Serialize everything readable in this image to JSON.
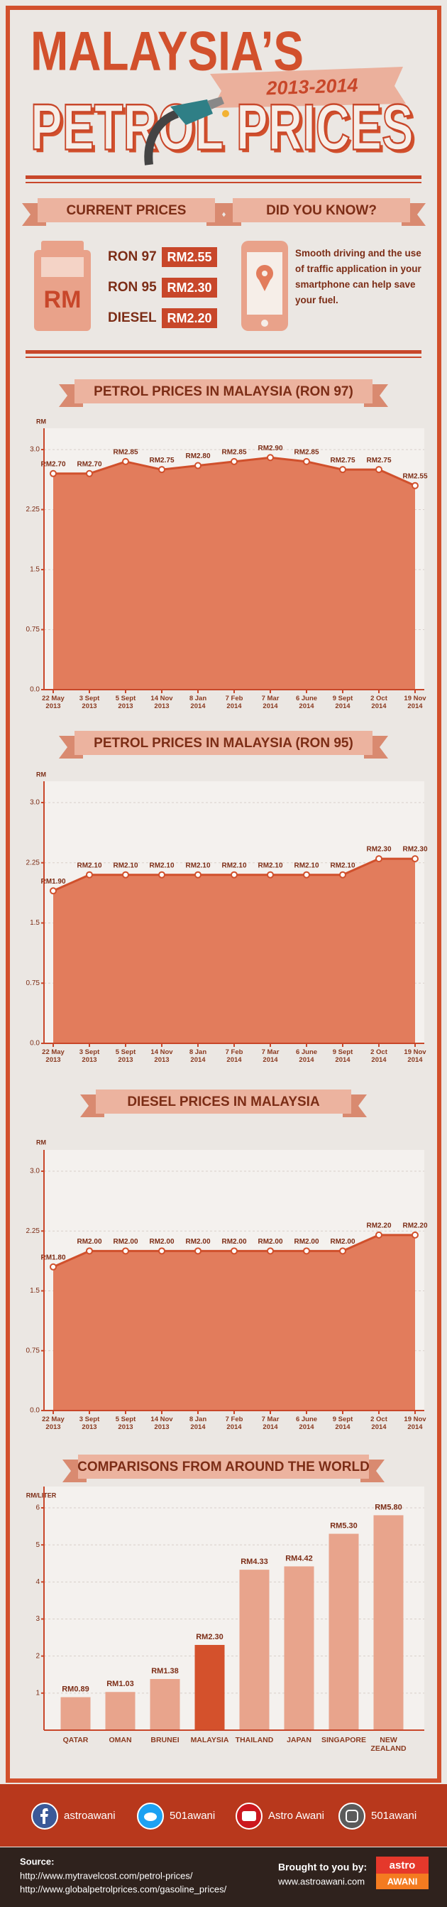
{
  "header": {
    "title": "MALAYSIA’S",
    "subtitle": "PETROL PRICES",
    "years": "2013-2014"
  },
  "current_prices": {
    "title": "CURRENT PRICES",
    "badge": "RM",
    "items": [
      {
        "fuel": "RON 97",
        "price": "RM2.55"
      },
      {
        "fuel": "RON 95",
        "price": "RM2.30"
      },
      {
        "fuel": "DIESEL",
        "price": "RM2.20"
      }
    ]
  },
  "did_you_know": {
    "title": "DID YOU KNOW?",
    "text": "Smooth driving and the use of traffic application in your smartphone can help save your fuel."
  },
  "chart_data": [
    {
      "type": "area",
      "title": "PETROL PRICES IN MALAYSIA (RON 97)",
      "y_label": "RM",
      "categories": [
        "22 May 2013",
        "3 Sept 2013",
        "5 Sept 2013",
        "14 Nov 2013",
        "8 Jan 2014",
        "7 Feb 2014",
        "7 Mar 2014",
        "6 June 2014",
        "9 Sept 2014",
        "2 Oct 2014",
        "19 Nov 2014"
      ],
      "values": [
        2.7,
        2.7,
        2.85,
        2.75,
        2.8,
        2.85,
        2.9,
        2.85,
        2.75,
        2.75,
        2.55
      ],
      "value_labels": [
        "RM2.70",
        "RM2.70",
        "RM2.85",
        "RM2.75",
        "RM2.80",
        "RM2.85",
        "RM2.90",
        "RM2.85",
        "RM2.75",
        "RM2.75",
        "RM2.55"
      ],
      "color": "#e27c5c",
      "line_color": "#d0502c",
      "ylim": [
        0,
        3
      ],
      "yticks": [
        {
          "value": 0,
          "label": "0.0"
        },
        0.75,
        1.5,
        2.25,
        {
          "value": 3,
          "label": "3.0"
        }
      ],
      "grid": true
    },
    {
      "type": "area",
      "title": "PETROL PRICES IN MALAYSIA (RON 95)",
      "y_label": "RM",
      "categories": [
        "22 May 2013",
        "3 Sept 2013",
        "5 Sept 2013",
        "14 Nov 2013",
        "8 Jan 2014",
        "7 Feb 2014",
        "7 Mar 2014",
        "6 June 2014",
        "9 Sept 2014",
        "2 Oct 2014",
        "19 Nov 2014"
      ],
      "values": [
        1.9,
        2.1,
        2.1,
        2.1,
        2.1,
        2.1,
        2.1,
        2.1,
        2.1,
        2.3,
        2.3
      ],
      "value_labels": [
        "RM1.90",
        "RM2.10",
        "RM2.10",
        "RM2.10",
        "RM2.10",
        "RM2.10",
        "RM2.10",
        "RM2.10",
        "RM2.10",
        "RM2.30",
        "RM2.30"
      ],
      "color": "#e27c5c",
      "line_color": "#d0502c",
      "ylim": [
        0,
        3
      ],
      "yticks": [
        {
          "value": 0,
          "label": "0.0"
        },
        0.75,
        1.5,
        2.25,
        {
          "value": 3,
          "label": "3.0"
        }
      ],
      "grid": true
    },
    {
      "type": "area",
      "title": "DIESEL PRICES IN MALAYSIA",
      "y_label": "RM",
      "categories": [
        "22 May 2013",
        "3 Sept 2013",
        "5 Sept 2013",
        "14 Nov 2013",
        "8 Jan 2014",
        "7 Feb 2014",
        "7 Mar 2014",
        "6 June 2014",
        "9 Sept 2014",
        "2 Oct 2014",
        "19 Nov 2014"
      ],
      "values": [
        1.8,
        2.0,
        2.0,
        2.0,
        2.0,
        2.0,
        2.0,
        2.0,
        2.0,
        2.2,
        2.2
      ],
      "value_labels": [
        "RM1.80",
        "RM2.00",
        "RM2.00",
        "RM2.00",
        "RM2.00",
        "RM2.00",
        "RM2.00",
        "RM2.00",
        "RM2.00",
        "RM2.20",
        "RM2.20"
      ],
      "color": "#e27c5c",
      "line_color": "#d0502c",
      "ylim": [
        0,
        3
      ],
      "yticks": [
        {
          "value": 0,
          "label": "0.0"
        },
        0.75,
        1.5,
        2.25,
        {
          "value": 3,
          "label": "3.0"
        }
      ],
      "grid": true
    },
    {
      "type": "bar",
      "title": "COMPARISONS FROM AROUND THE WORLD",
      "y_label": "RM/LITER",
      "categories": [
        "QATAR",
        "OMAN",
        "BRUNEI",
        "MALAYSIA",
        "THAILAND",
        "JAPAN",
        "SINGAPORE",
        "NEW ZEALAND"
      ],
      "values": [
        0.89,
        1.03,
        1.38,
        2.3,
        4.33,
        4.42,
        5.3,
        5.8
      ],
      "value_labels": [
        "RM0.89",
        "RM1.03",
        "RM1.38",
        "RM2.30",
        "RM4.33",
        "RM4.42",
        "RM5.30",
        "RM5.80"
      ],
      "colors": [
        "#e8a48c",
        "#e8a48c",
        "#e8a48c",
        "#d4512c",
        "#e8a48c",
        "#e8a48c",
        "#e8a48c",
        "#e8a48c"
      ],
      "ylim": [
        0,
        6
      ],
      "yticks": [
        1,
        2,
        3,
        4,
        5,
        6
      ],
      "grid": true
    }
  ],
  "footer": {
    "social": [
      "astroawani",
      "501awani",
      "Astro Awani",
      "501awani"
    ],
    "source_label": "Source:",
    "sources": [
      "http://www.mytravelcost.com/petrol-prices/",
      "http://www.globalpetrolprices.com/gasoline_prices/"
    ],
    "credit_label": "Brought to you by:",
    "credit_url": "www.astroawani.com",
    "logo_top": "astro",
    "logo_bottom": "AWANI"
  }
}
